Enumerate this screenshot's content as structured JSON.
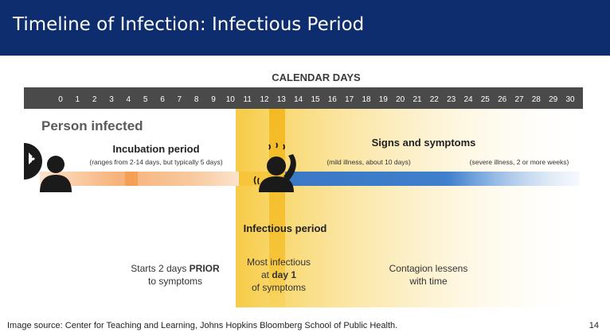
{
  "slide": {
    "title": "Timeline of Infection: Infectious Period",
    "source": "Image source: Center for Teaching and Learning, Johns Hopkins Bloomberg School of Public Health.",
    "page_number": "14"
  },
  "timeline": {
    "calendar_label": "CALENDAR DAYS",
    "days": [
      "0",
      "1",
      "2",
      "3",
      "4",
      "5",
      "6",
      "7",
      "8",
      "9",
      "10",
      "11",
      "12",
      "13",
      "14",
      "15",
      "16",
      "17",
      "18",
      "19",
      "20",
      "21",
      "22",
      "23",
      "24",
      "25",
      "26",
      "27",
      "28",
      "29",
      "30"
    ],
    "person_infected": "Person infected",
    "incubation_title": "Incubation period",
    "incubation_note": "(ranges from 2-14 days, but typically 5 days)",
    "symptoms_title": "Signs and symptoms",
    "mild_note": "(mild illness, about 10 days)",
    "severe_note": "(severe illness, 2 or more weeks)",
    "infectious_title": "Infectious period",
    "starts_line1_pre": "Starts 2 days ",
    "starts_line1_bold": "PRIOR",
    "starts_line2": "to symptoms",
    "most_line1": "Most infectious",
    "most_line2_pre": "at ",
    "most_line2_bold": "day 1",
    "most_line3": "of symptoms",
    "contagion_line1": "Contagion lessens",
    "contagion_line2": "with time"
  },
  "colors": {
    "header": "#0e2d6e",
    "day_bar": "#4a4a4a",
    "incubation": "#f4a261",
    "symptoms": "#3d7cc9",
    "infectious": "#f7cd44"
  }
}
